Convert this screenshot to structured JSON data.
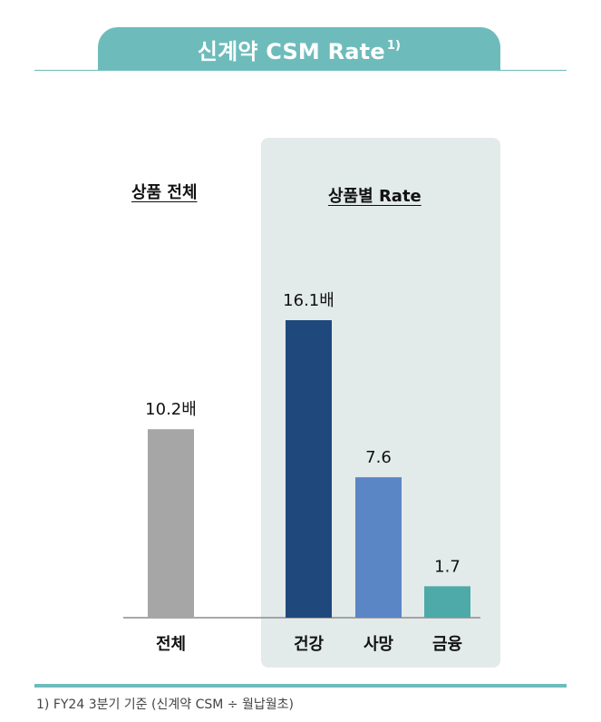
{
  "title": {
    "text": "신계약 CSM Rate",
    "superscript": "1)"
  },
  "labels": {
    "overall_section": "상품 전체",
    "product_section": "상품별 Rate"
  },
  "chart_data": {
    "type": "bar",
    "categories": [
      "전체",
      "건강",
      "사망",
      "금융"
    ],
    "values": [
      10.2,
      16.1,
      7.6,
      1.7
    ],
    "value_labels": [
      "10.2배",
      "16.1배",
      "7.6",
      "1.7"
    ],
    "colors": [
      "#a6a6a6",
      "#1f497d",
      "#5b86c6",
      "#4eaaa8"
    ],
    "ylim": [
      0,
      18
    ],
    "grid": false,
    "legend": "none"
  },
  "footnote": "1) FY24 3분기 기준 (신계약 CSM ÷ 월납월초)"
}
